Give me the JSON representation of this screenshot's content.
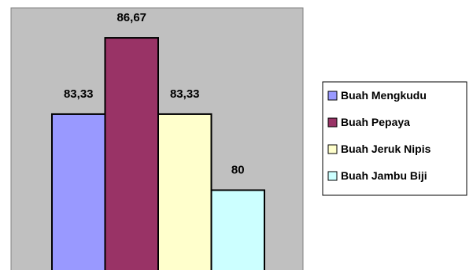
{
  "chart_data": {
    "type": "bar",
    "title": "",
    "xlabel": "",
    "ylabel": "",
    "ylim": [
      76.5,
      88.5
    ],
    "grid": false,
    "legend_position": "right",
    "categories": [
      "Buah Mengkudu",
      "Buah Pepaya",
      "Buah Jeruk Nipis",
      "Buah Jambu Biji"
    ],
    "values": [
      83.33,
      86.67,
      83.33,
      80
    ],
    "value_labels": [
      "83,33",
      "86,67",
      "83,33",
      "80"
    ],
    "colors": [
      "#9999FF",
      "#993366",
      "#FFFFCC",
      "#CCFFFF"
    ],
    "plot_background": "#C0C0C0"
  }
}
